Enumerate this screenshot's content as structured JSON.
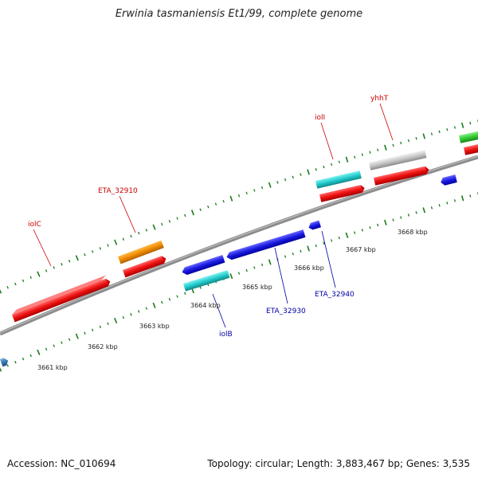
{
  "title": "Erwinia tasmaniensis Et1/99, complete genome",
  "footer": {
    "accession": "Accession: NC_010694",
    "summary": "Topology: circular; Length: 3,883,467 bp; Genes: 3,535"
  },
  "colors": {
    "backbone": "#8c8c8c",
    "tick_green": "#1a7a1a",
    "gene_red": "#ee1111",
    "gene_orange": "#f08c00",
    "gene_cyan": "#22cccc",
    "gene_blue": "#1a1ae0",
    "gene_gray": "#c4c4c4",
    "gene_green": "#33cc33",
    "gene_steel": "#3a78b0",
    "label_red": "#cc0000",
    "label_blue": "#0000aa"
  },
  "kbp_labels": [
    {
      "name": "kbp-3661",
      "text": "3661 kbp"
    },
    {
      "name": "kbp-3662",
      "text": "3662 kbp"
    },
    {
      "name": "kbp-3663",
      "text": "3663 kbp"
    },
    {
      "name": "kbp-3664",
      "text": "3664 kbp"
    },
    {
      "name": "kbp-3665",
      "text": "3665 kbp"
    },
    {
      "name": "kbp-3666",
      "text": "3666 kbp"
    },
    {
      "name": "kbp-3667",
      "text": "3667 kbp"
    },
    {
      "name": "kbp-3668",
      "text": "3668 kbp"
    }
  ],
  "gene_labels": [
    {
      "name": "label-iolC",
      "text": "iolC"
    },
    {
      "name": "label-ETA_32910",
      "text": "ETA_32910"
    },
    {
      "name": "label-iolI",
      "text": "iolI"
    },
    {
      "name": "label-yhhT",
      "text": "yhhT"
    },
    {
      "name": "label-iolB",
      "text": "iolB"
    },
    {
      "name": "label-ETA_32930",
      "text": "ETA_32930"
    },
    {
      "name": "label-ETA_32940",
      "text": "ETA_32940"
    }
  ]
}
